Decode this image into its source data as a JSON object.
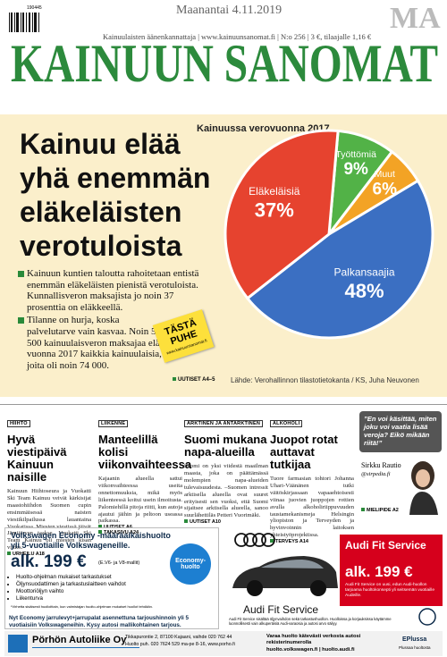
{
  "header": {
    "issue_code": "190445",
    "date": "Maanantai 4.11.2019",
    "edition": "MA",
    "tagline": "Kainuulaisten äänenkannattaja | www.kainuunsanomat.fi | N:o 256 | 3 €, tilaajalle 1,16 €",
    "masthead": "KAINUUN SANOMAT"
  },
  "lead": {
    "headline": "Kainuu elää yhä enemmän eläkeläisten verotuloista",
    "bullets": [
      "Kainuun kuntien taloutta rahoitetaan entistä enemmän eläkeläisten pienistä verotuloista. Kunnallisveron maksajista jo noin 37 prosenttia on eläkkeellä.",
      "Tilanne on hurja, koska palvelutarve vain kasvaa. Noin 53 500 kainuulaisveron maksajaa elätti vuonna 2017 kaikkia kainuulaisia, joita oli noin 74 000."
    ],
    "ref": "UUTISET A4–5",
    "badge": "TÄSTÄ PUHE",
    "badge_url": "www.kainuunsanomat.fi"
  },
  "chart_data": {
    "type": "pie",
    "title": "Kainuussa verovuonna 2017",
    "categories": [
      "Työttömiä",
      "Muut",
      "Palkansaajia",
      "Eläkeläisiä"
    ],
    "values": [
      9,
      6,
      48,
      37
    ],
    "value_labels": [
      "9%",
      "6%",
      "48%",
      "37%"
    ],
    "colors": [
      "#52b247",
      "#f3a325",
      "#3b6fc2",
      "#e6432f"
    ],
    "source": "Lähde: Verohallinnon tilastotietokanta / KS, Juha Neuvonen"
  },
  "news": [
    {
      "section": "HIIHTO",
      "headline": "Hyvä viestipäivä Kainuun naisille",
      "body": "Kainuun Hiihtoseura ja Vuokatti Ski Team Kainuu veivät kärkisijat maastohiihdon Suomen cupin ensimmäisessä naisten viestikilpailussa lauantaina Vuokatissa. Miesten viestissä jäivät Jämijärven taakse. Vuokatti Ski Team Kainuu oli miesten kisan viides.",
      "refs": [
        "URHEILU A18"
      ]
    },
    {
      "section": "LIIKENNE",
      "headline": "Manteelillä kolisi viikonvaihteessa",
      "body": "Kajaanin alueella sattui viikonvaihteessa useita onnettomuuksia, mikä myös liikenteessä koitui usein ilmoitusta. Palomiehillä pitoja riitti, kun autoja ajautui jäihin ja peltoon useassa paikassa.",
      "refs": [
        "UUTISET A6",
        "TAKASIVU A24"
      ]
    },
    {
      "section": "ARKTINEN JA ANTARKTINEN",
      "headline": "Suomi mukana napa-alueilla",
      "body": "Suomi on yksi viidestä maailman maasta, joka on päättämässä molempien napa-alueiden tulevaisuudesta. –Suomen intressit arktisella alueella ovat suuret erityisesti sen vuoksi, että Suomi sijaitsee arktisella alueella, sanoo suurlähettiläs Petteri Vuorimäki.",
      "refs": [
        "UUTISET A10"
      ]
    },
    {
      "section": "ALKOHOLI",
      "headline": "Juopot rotat auttavat tutkijaa",
      "body": "Tuore farmasian tohtori Johanna Uhari-Väänänen tutki väitöskirjassaan vapaaehtoisesti viinaa juovien juoppojen rottien avulla alkoholiriippuvuuden taustamekanismeja Helsingin yliopiston ja Terveyden ja hyvinvoinnin laitoksen yhteistyöprojektissa.",
      "refs": [
        "TERVEYS A14"
      ]
    }
  ],
  "opinion": {
    "quote": "”En voi käsittää, miten joku voi vaatia lisää veroja? Eikö mikään riitä!”",
    "author": "Sirkku Rautio",
    "handle": "@sirpedia.fi",
    "ref": "MIELIPIDE A2"
  },
  "ads": {
    "vw": {
      "title": "Volkswagen Economy -määräaikaishuolto yli 5-vuotiaille Volkswageneille.",
      "price": "alk. 199 €",
      "price_note": "(E.V6- ja V8-mallit)",
      "badge": "Economy-huolto",
      "items": [
        "Huolto-ohjelman mukaiset tarkastukset",
        "Öljynsuodattimen ja tarkastuslaitteen vaihdot",
        "Moottoriöljyn vaihto",
        "Liikenturva"
      ],
      "footnote": "*Virhetta sisäisesti huolloittain, kun valmistajan huolto-ohjelman mukaiset huollot tehdään.",
      "offer": "Nyt Economy jarrulevyt+jarrupalat asennettuna tarjoushinnoin yli 5 vuotiaisiin Volkswageneihin. Kysy autosi mallikohtainen tarjous."
    },
    "audi": {
      "brand": "Audi Fit Service",
      "box_title": "Audi Fit Service",
      "price": "alk. 199 €",
      "box_text": "Audi Fit Service on uusi, edun Audi-huollon tarjoama huoltokonsepti yli seitsemän vuotiaille Audeille.",
      "note": "Audi Fit Service sisältää öljynvaihdon sekä tarkastushuollon. Huolloissa ja korjauksissa käytämme luonnollisesti vain alkuperäisiä Audi-varaosia ja autosi arvo säilyy."
    },
    "footer": {
      "company": "Pörhön Autoliike Oy",
      "address": "Tikkapurontie 2, 87100 Kajaani, vaihde 020 762 44",
      "service": "Huolto puh. 020 7624 529 ma-pe 8-16, www.porho.fi",
      "booking": "Varaa huolto kätevästi verkosta autosi rekisterinumerolla",
      "links": "huolto.volkswagen.fi | huolto.audi.fi",
      "plus": "EPlussa",
      "plus_note": "Plussaa huoltosta"
    }
  }
}
